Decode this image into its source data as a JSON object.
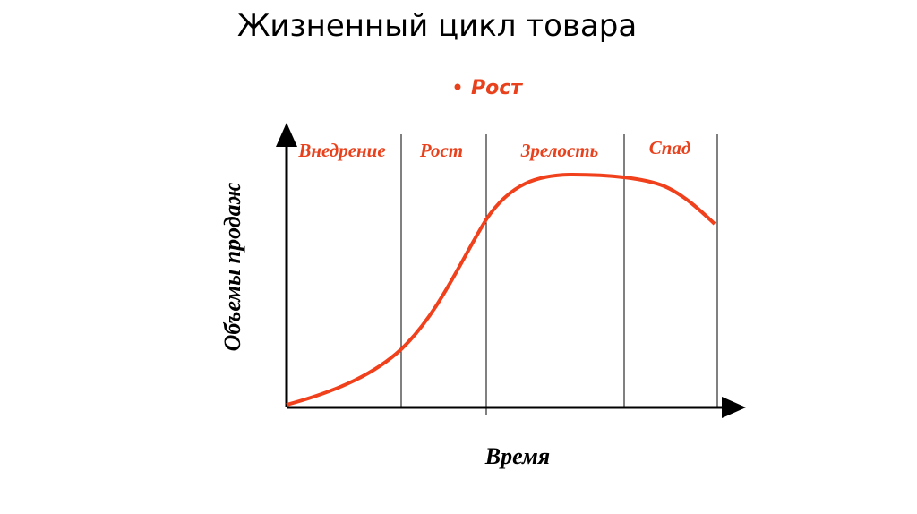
{
  "header": {
    "title": "Жизненный цикл товара",
    "bullet": "Рост"
  },
  "diagram": {
    "stages": [
      "Внедрение",
      "Рост",
      "Зрелость",
      "Спад"
    ],
    "y_label": "Объемы продаж",
    "x_label": "Время"
  }
}
